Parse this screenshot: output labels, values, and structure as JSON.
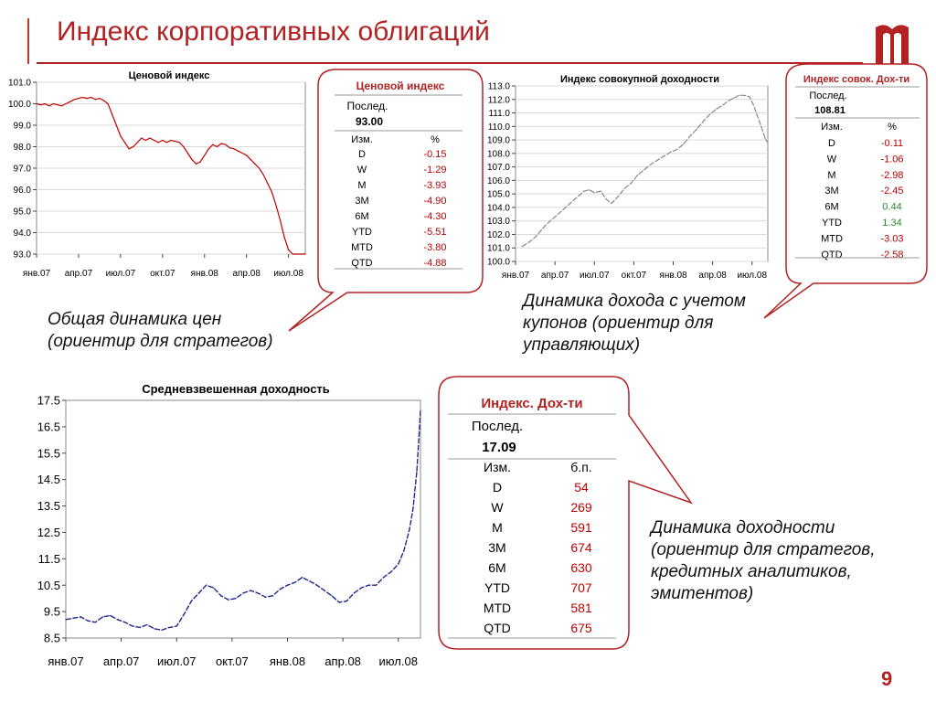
{
  "page": {
    "title": "Индекс корпоративных облигаций",
    "page_number": "9",
    "accent_color": "#b22222"
  },
  "captions": {
    "price": "Общая динамика цен\n(ориентир для стратегов)",
    "total": "Динамика дохода с учетом\nкупонов (ориентир для\nуправляющих)",
    "yield": "Динамика доходности\n(ориентир для стратегов,\nкредитных аналитиков,\nэмитентов)"
  },
  "callouts": {
    "price": {
      "title": "Ценовой индекс",
      "last_label": "Послед.",
      "last_value": "93.00",
      "col1": "Изм.",
      "col2": "%",
      "rows": [
        {
          "label": "D",
          "value": "-0.15",
          "color": "#c00000"
        },
        {
          "label": "W",
          "value": "-1.29",
          "color": "#c00000"
        },
        {
          "label": "M",
          "value": "-3.93",
          "color": "#c00000"
        },
        {
          "label": "3M",
          "value": "-4.90",
          "color": "#c00000"
        },
        {
          "label": "6M",
          "value": "-4.30",
          "color": "#c00000"
        },
        {
          "label": "YTD",
          "value": "-5.51",
          "color": "#c00000"
        },
        {
          "label": "MTD",
          "value": "-3.80",
          "color": "#c00000"
        },
        {
          "label": "QTD",
          "value": "-4.88",
          "color": "#c00000"
        }
      ]
    },
    "total": {
      "title": "Индекс совок. Дох-ти",
      "last_label": "Послед.",
      "last_value": "108.81",
      "col1": "Изм.",
      "col2": "%",
      "rows": [
        {
          "label": "D",
          "value": "-0.11",
          "color": "#c00000"
        },
        {
          "label": "W",
          "value": "-1.06",
          "color": "#c00000"
        },
        {
          "label": "M",
          "value": "-2.98",
          "color": "#c00000"
        },
        {
          "label": "3M",
          "value": "-2.45",
          "color": "#c00000"
        },
        {
          "label": "6M",
          "value": "0.44",
          "color": "#2e8b2e"
        },
        {
          "label": "YTD",
          "value": "1.34",
          "color": "#2e8b2e"
        },
        {
          "label": "MTD",
          "value": "-3.03",
          "color": "#c00000"
        },
        {
          "label": "QTD",
          "value": "-2.58",
          "color": "#c00000"
        }
      ]
    },
    "yield": {
      "title": "Индекс. Дох-ти",
      "last_label": "Послед.",
      "last_value": "17.09",
      "col1": "Изм.",
      "col2": "б.п.",
      "rows": [
        {
          "label": "D",
          "value": "54",
          "color": "#c00000"
        },
        {
          "label": "W",
          "value": "269",
          "color": "#c00000"
        },
        {
          "label": "M",
          "value": "591",
          "color": "#c00000"
        },
        {
          "label": "3M",
          "value": "674",
          "color": "#c00000"
        },
        {
          "label": "6M",
          "value": "630",
          "color": "#c00000"
        },
        {
          "label": "YTD",
          "value": "707",
          "color": "#c00000"
        },
        {
          "label": "MTD",
          "value": "581",
          "color": "#c00000"
        },
        {
          "label": "QTD",
          "value": "675",
          "color": "#c00000"
        }
      ]
    }
  },
  "chart_data": [
    {
      "id": "price",
      "type": "line",
      "title": "Ценовой индекс",
      "xlabel": "",
      "ylabel": "",
      "ylim": [
        93.0,
        101.0
      ],
      "yticks": [
        "101.0",
        "100.0",
        "99.0",
        "98.0",
        "97.0",
        "96.0",
        "95.0",
        "94.0",
        "93.0"
      ],
      "xticks": [
        "янв.07",
        "апр.07",
        "июл.07",
        "окт.07",
        "янв.08",
        "апр.08",
        "июл.08"
      ],
      "xlim": [
        0,
        19.2
      ],
      "color": "#c00000",
      "grid": true,
      "series": [
        {
          "x": [
            0,
            0.3,
            0.6,
            0.9,
            1.2,
            1.5,
            1.8,
            2.1,
            2.4,
            2.7,
            3.0,
            3.3,
            3.6,
            3.9,
            4.2,
            4.5,
            4.8,
            5.1,
            5.4,
            5.7,
            6.0,
            6.3,
            6.6,
            6.9,
            7.2,
            7.5,
            7.8,
            8.1,
            8.4,
            8.7,
            9.0,
            9.3,
            9.6,
            9.9,
            10.2,
            10.5,
            10.8,
            11.1,
            11.4,
            11.7,
            12.0,
            12.3,
            12.6,
            12.9,
            13.2,
            13.5,
            13.8,
            14.1,
            14.4,
            14.7,
            15.0,
            15.3,
            15.6,
            15.9,
            16.2,
            16.5,
            16.8,
            17.1,
            17.4,
            17.7,
            18.0,
            18.3,
            18.6,
            18.9,
            19.1,
            19.2
          ],
          "y": [
            100.0,
            99.95,
            100.0,
            99.9,
            100.0,
            99.95,
            99.9,
            100.0,
            100.1,
            100.2,
            100.25,
            100.3,
            100.25,
            100.3,
            100.2,
            100.25,
            100.15,
            100.0,
            99.5,
            99.0,
            98.5,
            98.2,
            97.9,
            98.0,
            98.2,
            98.4,
            98.3,
            98.4,
            98.3,
            98.2,
            98.3,
            98.2,
            98.3,
            98.25,
            98.2,
            98.0,
            97.7,
            97.4,
            97.2,
            97.3,
            97.6,
            97.9,
            98.1,
            98.0,
            98.15,
            98.1,
            97.95,
            97.9,
            97.8,
            97.7,
            97.6,
            97.4,
            97.2,
            97.0,
            96.7,
            96.3,
            95.9,
            95.3,
            94.6,
            93.8,
            93.2,
            93.0,
            93.0,
            93.0,
            93.0,
            93.0
          ]
        }
      ]
    },
    {
      "id": "total",
      "type": "line",
      "title": "Индекс совокупной доходности",
      "xlabel": "",
      "ylabel": "",
      "ylim": [
        100.0,
        113.0
      ],
      "yticks": [
        "113.0",
        "112.0",
        "111.0",
        "110.0",
        "109.0",
        "108.0",
        "107.0",
        "106.0",
        "105.0",
        "104.0",
        "103.0",
        "102.0",
        "101.0",
        "100.0"
      ],
      "xticks": [
        "янв.07",
        "апр.07",
        "июл.07",
        "окт.07",
        "янв.08",
        "апр.08",
        "июл.08"
      ],
      "xlim": [
        0,
        19.2
      ],
      "color": "#888888",
      "grid": true,
      "series": [
        {
          "x": [
            0.5,
            1.0,
            1.5,
            2.3,
            5.2,
            5.6,
            6.0,
            6.5,
            6.9,
            7.3,
            7.8,
            8.3,
            8.8,
            9.3,
            9.8,
            10.3,
            10.8,
            11.3,
            11.8,
            12.3,
            12.8,
            13.3,
            13.8,
            14.3,
            14.8,
            15.3,
            15.8,
            16.2,
            16.6,
            17.0,
            17.4,
            17.8,
            18.1,
            18.4,
            18.7,
            19.0,
            19.2
          ],
          "y": [
            101.1,
            101.4,
            101.8,
            102.7,
            105.2,
            105.3,
            105.1,
            105.2,
            104.6,
            104.3,
            104.8,
            105.4,
            105.8,
            106.4,
            106.8,
            107.2,
            107.5,
            107.8,
            108.1,
            108.3,
            108.7,
            109.3,
            109.8,
            110.4,
            110.9,
            111.3,
            111.6,
            111.9,
            112.1,
            112.3,
            112.3,
            112.2,
            111.6,
            110.8,
            110.0,
            109.1,
            108.8
          ]
        }
      ]
    },
    {
      "id": "yield",
      "type": "line",
      "title": "Средневзвешенная доходность",
      "xlabel": "",
      "ylabel": "",
      "ylim": [
        8.5,
        17.5
      ],
      "yticks": [
        "17.5",
        "16.5",
        "15.5",
        "14.5",
        "13.5",
        "12.5",
        "11.5",
        "10.5",
        "9.5",
        "8.5"
      ],
      "xticks": [
        "янв.07",
        "апр.07",
        "июл.07",
        "окт.07",
        "янв.08",
        "апр.08",
        "июл.08"
      ],
      "xlim": [
        0,
        19.2
      ],
      "color": "#1f2a8c",
      "grid": false,
      "series": [
        {
          "x": [
            0,
            0.4,
            0.8,
            1.2,
            1.6,
            2.0,
            2.4,
            2.8,
            3.2,
            3.6,
            4.0,
            4.4,
            4.8,
            5.2,
            5.6,
            6.0,
            6.4,
            6.8,
            7.2,
            7.6,
            8.0,
            8.4,
            8.8,
            9.2,
            9.6,
            10.0,
            10.4,
            10.8,
            11.2,
            11.6,
            12.0,
            12.4,
            12.8,
            13.2,
            13.6,
            14.0,
            14.4,
            14.8,
            15.2,
            15.6,
            16.0,
            16.4,
            16.8,
            17.2,
            17.6,
            18.0,
            18.3,
            18.6,
            18.8,
            19.0,
            19.2
          ],
          "y": [
            9.2,
            9.25,
            9.3,
            9.15,
            9.1,
            9.3,
            9.35,
            9.2,
            9.1,
            8.95,
            8.9,
            9.0,
            8.85,
            8.8,
            8.9,
            8.95,
            9.4,
            9.9,
            10.2,
            10.5,
            10.4,
            10.1,
            9.95,
            10.0,
            10.2,
            10.3,
            10.2,
            10.05,
            10.1,
            10.35,
            10.5,
            10.6,
            10.8,
            10.65,
            10.5,
            10.3,
            10.1,
            9.85,
            9.9,
            10.2,
            10.4,
            10.5,
            10.5,
            10.8,
            11.0,
            11.3,
            11.8,
            12.6,
            13.4,
            14.8,
            17.1
          ]
        }
      ]
    }
  ]
}
